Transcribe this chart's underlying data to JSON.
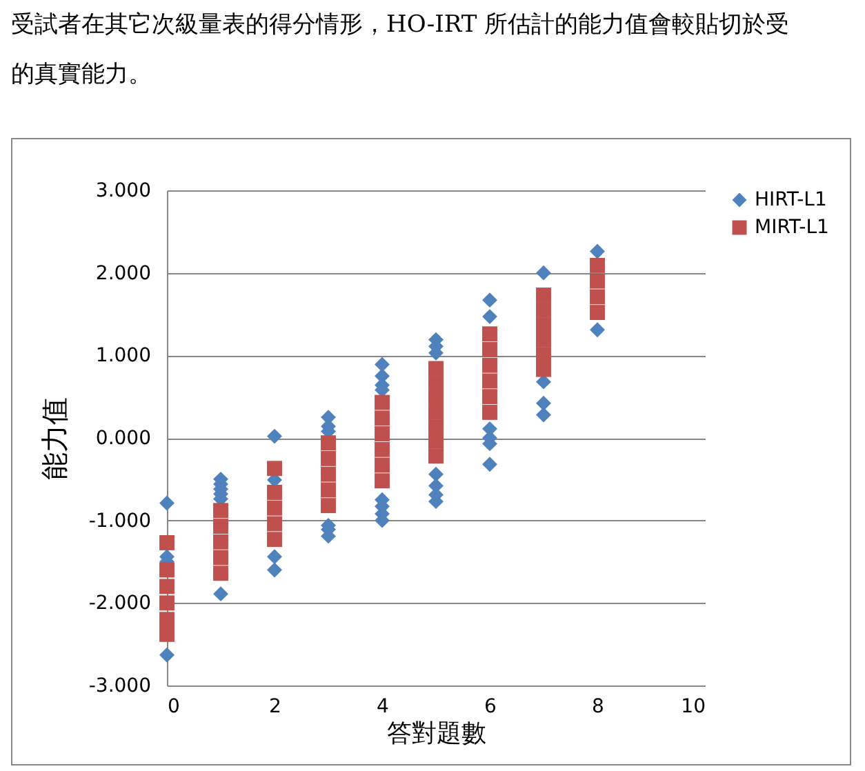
{
  "chart_data": {
    "type": "scatter",
    "xlabel": "答對題數",
    "ylabel": "能力值",
    "annotations": [
      "受試者在其它次級量表的得分情形，HO-IRT 所估計的能力值會較貼切於受",
      "的真實能力。"
    ],
    "xlim": [
      0,
      10
    ],
    "xticks": [
      0,
      2,
      4,
      6,
      8,
      10
    ],
    "ylim": [
      -3,
      3
    ],
    "yticks": [
      {
        "value": -3,
        "label": "-3.000"
      },
      {
        "value": -2,
        "label": "-2.000"
      },
      {
        "value": -1,
        "label": "-1.000"
      },
      {
        "value": 0,
        "label": "0.000"
      },
      {
        "value": 1,
        "label": "1.000"
      },
      {
        "value": 2,
        "label": "2.000"
      },
      {
        "value": 3,
        "label": "3.000"
      }
    ],
    "grid": "y",
    "legend": "right",
    "series": [
      {
        "name": "HIRT-L1",
        "color": "#4f81bd",
        "marker": "diamond",
        "x": [
          0,
          0,
          0,
          0,
          1,
          1,
          1,
          1,
          1,
          1,
          2,
          2,
          2,
          2,
          3,
          3,
          3,
          3,
          3,
          3,
          4,
          4,
          4,
          4,
          4,
          4,
          4,
          4,
          5,
          5,
          5,
          5,
          5,
          5,
          5,
          6,
          6,
          6,
          6,
          6,
          6,
          7,
          7,
          7,
          7,
          8,
          8
        ],
        "values": [
          -0.79,
          -1.44,
          -1.5,
          -2.63,
          -0.5,
          -0.56,
          -0.62,
          -0.68,
          -0.74,
          -1.89,
          0.02,
          -0.51,
          -1.44,
          -1.6,
          0.25,
          0.14,
          0.08,
          -1.06,
          -1.11,
          -1.19,
          0.89,
          0.75,
          0.64,
          0.58,
          -0.75,
          -0.83,
          -0.92,
          -1.0,
          1.19,
          1.11,
          1.03,
          -0.44,
          -0.58,
          -0.69,
          -0.77,
          1.67,
          1.47,
          0.11,
          0.0,
          -0.07,
          -0.32,
          2.0,
          0.68,
          0.42,
          0.28,
          2.26,
          1.31
        ]
      },
      {
        "name": "MIRT-L1",
        "color": "#c0504d",
        "marker": "square",
        "x": [
          0,
          0,
          0,
          0,
          0,
          0,
          1,
          1,
          1,
          1,
          1,
          2,
          2,
          2,
          2,
          2,
          3,
          3,
          3,
          3,
          3,
          4,
          4,
          4,
          4,
          4,
          4,
          5,
          5,
          5,
          5,
          5,
          5,
          5,
          6,
          6,
          6,
          6,
          6,
          6,
          7,
          7,
          7,
          7,
          7,
          7,
          8,
          8,
          8,
          8
        ],
        "values": [
          -1.27,
          -1.6,
          -1.8,
          -2.0,
          -2.2,
          -2.38,
          -0.88,
          -1.07,
          -1.26,
          -1.45,
          -1.64,
          -0.37,
          -0.66,
          -0.85,
          -1.04,
          -1.23,
          -0.06,
          -0.25,
          -0.44,
          -0.63,
          -0.82,
          0.43,
          0.24,
          0.05,
          -0.14,
          -0.33,
          -0.52,
          0.84,
          0.66,
          0.49,
          0.31,
          0.13,
          -0.04,
          -0.22,
          1.26,
          1.07,
          0.88,
          0.69,
          0.5,
          0.31,
          1.73,
          1.55,
          1.37,
          1.19,
          1.01,
          0.83,
          2.09,
          1.9,
          1.71,
          1.52
        ]
      }
    ]
  }
}
